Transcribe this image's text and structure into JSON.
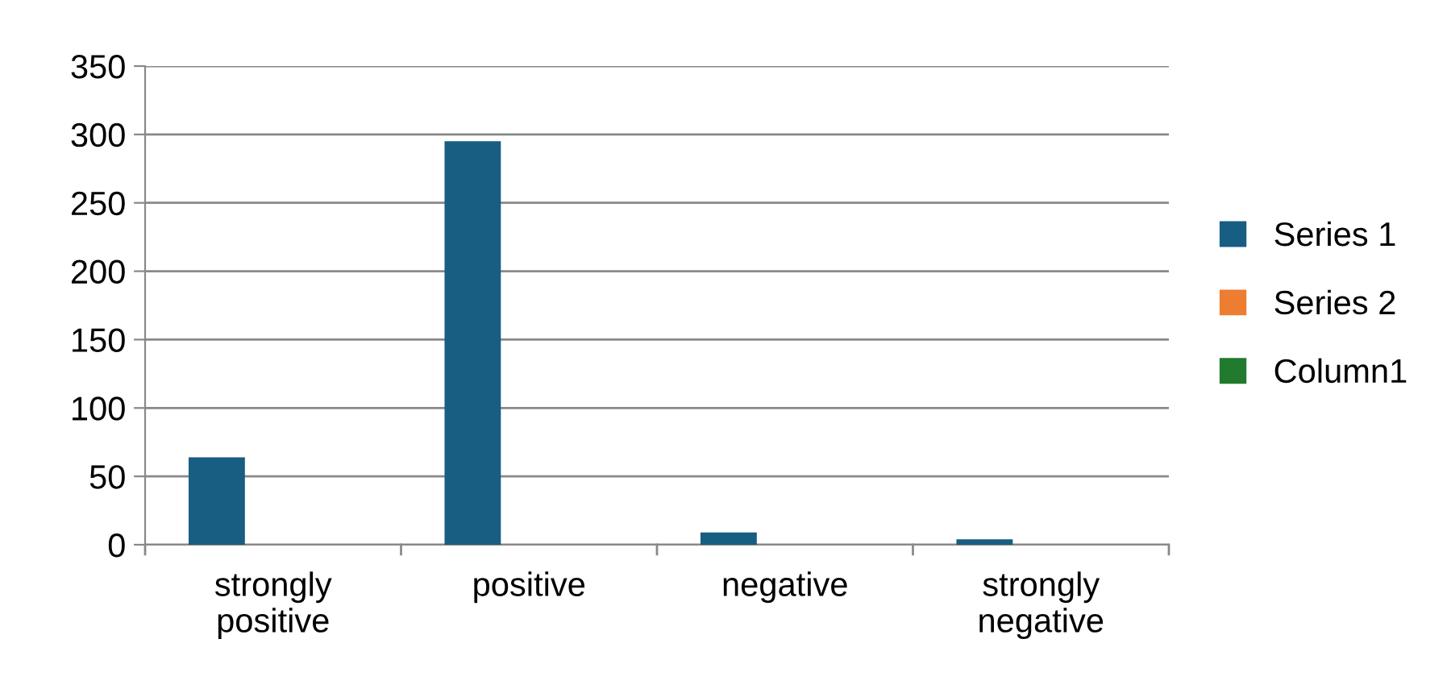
{
  "chart_data": {
    "type": "bar",
    "categories": [
      "strongly\npositive",
      "positive",
      "negative",
      "strongly\nnegative"
    ],
    "series": [
      {
        "name": "Series 1",
        "color": "#175e82",
        "values": [
          64,
          295,
          9,
          4
        ]
      },
      {
        "name": "Series 2",
        "color": "#ed7d31",
        "values": [
          null,
          null,
          null,
          null
        ]
      },
      {
        "name": "Column1",
        "color": "#217a2e",
        "values": [
          null,
          null,
          null,
          null
        ]
      }
    ],
    "ylim": [
      0,
      350
    ],
    "yticks": [
      0,
      50,
      100,
      150,
      200,
      250,
      300,
      350
    ],
    "grid": "y",
    "legend": "right"
  }
}
